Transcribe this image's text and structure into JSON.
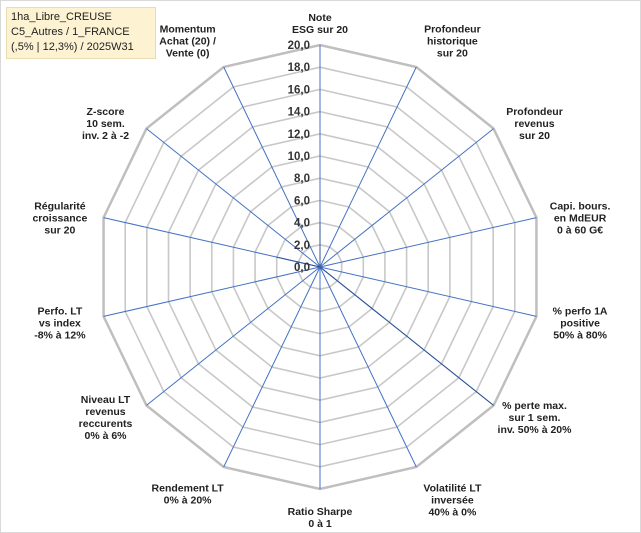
{
  "info_box": {
    "line1": "1ha_Libre_CREUSE",
    "line2": "C5_Autres / 1_FRANCE",
    "line3": "(,5% | 12,3%) / 2025W31"
  },
  "colors": {
    "grid": "#c8c8c8",
    "spoke": "#4472c4",
    "fill": "#4f7ab5",
    "stroke": "#2f5597"
  },
  "chart_data": {
    "type": "radar",
    "rmin": 0,
    "rmax": 20,
    "tick_values": [
      0,
      2,
      4,
      6,
      8,
      10,
      12,
      14,
      16,
      18,
      20
    ],
    "tick_labels": [
      "0,0",
      "2,0",
      "4,0",
      "6,0",
      "8,0",
      "10,0",
      "12,0",
      "14,0",
      "16,0",
      "18,0",
      "20,0"
    ],
    "categories": [
      [
        "Note",
        "ESG sur 20"
      ],
      [
        "Profondeur",
        "historique",
        "sur 20"
      ],
      [
        "Profondeur",
        "revenus",
        "sur 20"
      ],
      [
        "Capi. bours.",
        "en MdEUR",
        "0 à 60 G€"
      ],
      [
        "% perfo 1A",
        "positive",
        "50% à 80%"
      ],
      [
        "% perte max.",
        "sur 1 sem.",
        "inv. 50% à 20%"
      ],
      [
        "Volatilité LT",
        "inversée",
        "40% à 0%"
      ],
      [
        "Ratio Sharpe",
        "0 à 1"
      ],
      [
        "Rendement LT",
        "0% à 20%"
      ],
      [
        "Niveau LT",
        "revenus",
        "reccurents",
        "0% à 6%"
      ],
      [
        "Perfo. LT",
        "vs index",
        "-8% à 12%"
      ],
      [
        "Régularité",
        "croissance",
        "sur 20"
      ],
      [
        "Z-score",
        "10 sem.",
        "inv. 2 à -2"
      ],
      [
        "Momentum",
        "Achat (20) /",
        "Vente (0)"
      ]
    ],
    "values": [
      4,
      0,
      0,
      0,
      0,
      20,
      0,
      0,
      0,
      0,
      0,
      4,
      0,
      0
    ]
  }
}
